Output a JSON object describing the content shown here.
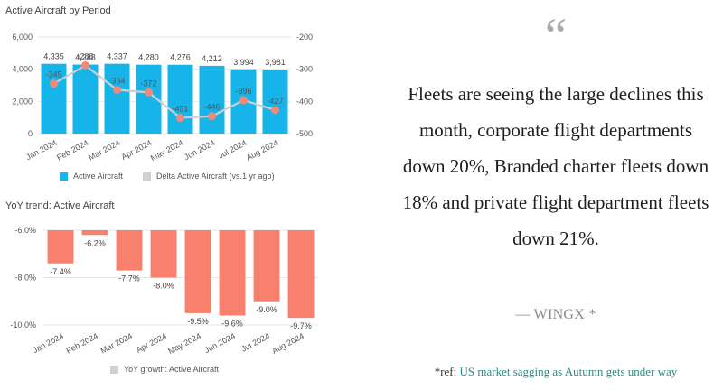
{
  "chart_data": [
    {
      "type": "bar",
      "title": "Active Aircraft by Period",
      "categories": [
        "Jan 2024",
        "Feb 2024",
        "Mar 2024",
        "Apr 2024",
        "May 2024",
        "Jun 2024",
        "Jul 2024",
        "Aug 2024"
      ],
      "series": [
        {
          "name": "Active Aircraft",
          "type": "bar",
          "axis": "left",
          "color": "#17b4ea",
          "values": [
            4335,
            4288,
            4337,
            4280,
            4276,
            4212,
            3994,
            3981
          ]
        },
        {
          "name": "Delta Active Aircraft (vs.1 yr ago)",
          "type": "line",
          "axis": "right",
          "color": "#cfcfcf",
          "marker_color": "#f08a7a",
          "values": [
            -345,
            -288,
            -364,
            -372,
            -451,
            -446,
            -396,
            -427
          ]
        }
      ],
      "y_left": {
        "ylim": [
          0,
          6000
        ],
        "ticks": [
          "0",
          "2,000",
          "4,000",
          "6,000"
        ]
      },
      "y_right": {
        "ylim": [
          -500,
          -200
        ],
        "ticks": [
          "-200",
          "-300",
          "-400",
          "-500"
        ]
      },
      "bar_labels": [
        "4,335",
        "4,288",
        "4,337",
        "4,280",
        "4,276",
        "4,212",
        "3,994",
        "3,981"
      ],
      "line_labels": [
        "-345",
        "-288",
        "-364",
        "-372",
        "-451",
        "-446",
        "-396",
        "-427"
      ],
      "grid": true,
      "legend_position": "bottom"
    },
    {
      "type": "bar",
      "title": "YoY trend: Active Aircraft",
      "categories": [
        "Jan 2024",
        "Feb 2024",
        "Mar 2024",
        "Apr 2024",
        "May 2024",
        "Jun 2024",
        "Jul 2024",
        "Aug 2024"
      ],
      "series": [
        {
          "name": "YoY growth: Active Aircraft",
          "color": "#f9806c",
          "values": [
            -7.4,
            -6.2,
            -7.7,
            -8.0,
            -9.5,
            -9.6,
            -9.0,
            -9.7
          ]
        }
      ],
      "ylim": [
        -10.0,
        -6.0
      ],
      "ticks": [
        "-6.0%",
        "-8.0%",
        "-10.0%"
      ],
      "bar_labels": [
        "-7.4%",
        "-6.2%",
        "-7.7%",
        "-8.0%",
        "-9.5%",
        "-9.6%",
        "-9.0%",
        "-9.7%"
      ],
      "grid": true,
      "legend_position": "bottom",
      "legend_swatch_color": "#cfcfcf"
    }
  ],
  "quote": {
    "mark": "“",
    "text": "Fleets are seeing the large declines this month, corporate flight departments down 20%, Branded charter fleets down 18% and private flight department fleets down 21%.",
    "attribution": "— WINGX *",
    "ref_prefix": "*ref:",
    "ref_link": "US market sagging as Autumn gets under way"
  }
}
